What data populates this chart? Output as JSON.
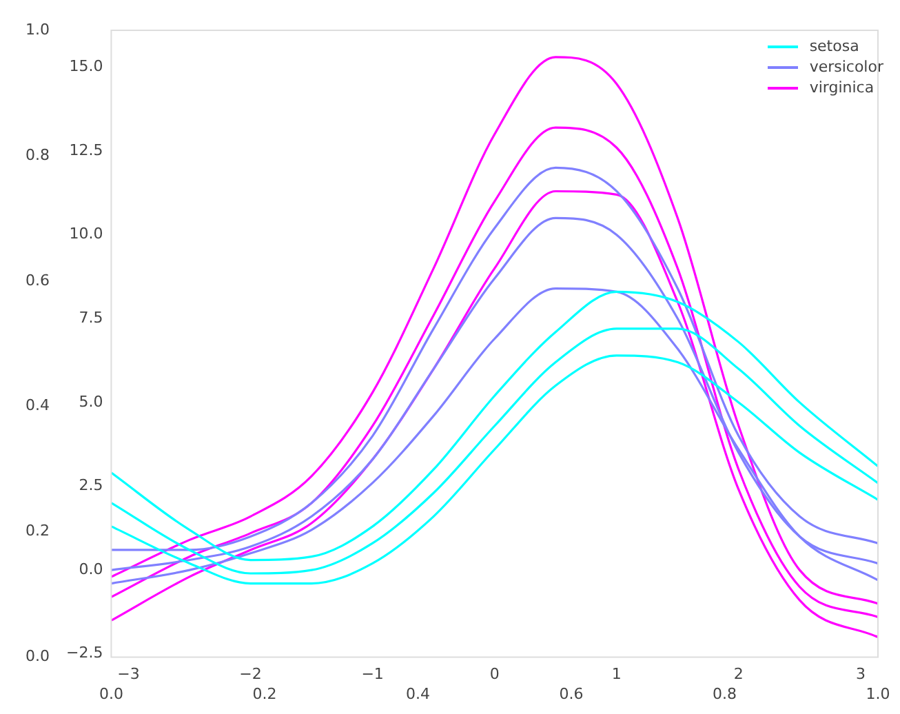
{
  "chart_data": {
    "type": "line",
    "x": [
      -3.14,
      -2.5,
      -2,
      -1.5,
      -1,
      -0.5,
      0,
      0.5,
      1,
      1.5,
      2,
      2.5,
      3.14
    ],
    "series": [
      {
        "name": "setosa",
        "color": "#00ffff",
        "values": [
          2.0,
          0.6,
          -0.1,
          0.0,
          0.8,
          2.3,
          4.3,
          6.2,
          7.2,
          7.2,
          6.0,
          4.3,
          2.6
        ]
      },
      {
        "color": "#00ffff",
        "values": [
          2.9,
          1.2,
          0.3,
          0.4,
          1.3,
          3.0,
          5.2,
          7.1,
          8.3,
          8.0,
          6.8,
          5.0,
          3.1
        ]
      },
      {
        "color": "#00ffff",
        "values": [
          1.3,
          0.2,
          -0.4,
          -0.4,
          0.2,
          1.6,
          3.6,
          5.5,
          6.4,
          6.2,
          5.0,
          3.5,
          2.1
        ]
      },
      {
        "name": "versicolor",
        "color": "#8080ff",
        "values": [
          0.0,
          0.3,
          0.7,
          1.6,
          3.3,
          6.0,
          8.7,
          10.5,
          10.0,
          7.5,
          3.5,
          1.0,
          0.2
        ]
      },
      {
        "color": "#8080ff",
        "values": [
          0.6,
          0.6,
          1.0,
          2.0,
          4.0,
          7.2,
          10.2,
          12.0,
          11.3,
          8.4,
          4.0,
          1.6,
          0.8
        ]
      },
      {
        "color": "#8080ff",
        "values": [
          -0.4,
          0.0,
          0.5,
          1.2,
          2.6,
          4.6,
          6.9,
          8.4,
          8.3,
          6.6,
          3.6,
          1.0,
          -0.3
        ]
      },
      {
        "name": "virginica",
        "color": "#ff00ff",
        "values": [
          -0.8,
          0.4,
          1.1,
          2.0,
          4.3,
          7.6,
          11.0,
          13.2,
          12.6,
          9.0,
          3.0,
          -0.5,
          -1.4
        ]
      },
      {
        "color": "#ff00ff",
        "values": [
          -0.2,
          0.9,
          1.6,
          2.8,
          5.3,
          9.0,
          13.0,
          15.3,
          14.5,
          10.5,
          4.3,
          0.0,
          -1.0
        ]
      },
      {
        "color": "#ff00ff",
        "values": [
          -1.5,
          -0.2,
          0.6,
          1.4,
          3.3,
          6.0,
          9.0,
          11.3,
          11.2,
          8.0,
          2.4,
          -0.9,
          -2.0
        ]
      }
    ],
    "xlim": [
      -3.1416,
      3.1416
    ],
    "xticks": [
      {
        "value": -3,
        "label": "−3"
      },
      {
        "value": -2,
        "label": "−2"
      },
      {
        "value": -1,
        "label": "−1"
      },
      0,
      1,
      2,
      3
    ],
    "ylim": [
      -2.6,
      16.1
    ],
    "yticks": [
      {
        "value": -2.5,
        "label": "−2.5"
      },
      {
        "value": 0,
        "label": "0.0"
      },
      2.5,
      {
        "value": 5,
        "label": "5.0"
      },
      7.5,
      {
        "value": 10,
        "label": "10.0"
      },
      12.5,
      {
        "value": 15,
        "label": "15.0"
      }
    ],
    "x2lim": [
      0,
      1
    ],
    "x2ticks": [
      {
        "value": 0,
        "label": "0.0"
      },
      0.2,
      0.4,
      0.6,
      0.8,
      {
        "value": 1,
        "label": "1.0"
      }
    ],
    "y2lim": [
      0,
      1
    ],
    "y2ticks": [
      {
        "value": 0,
        "label": "0.0"
      },
      0.2,
      0.4,
      0.6,
      0.8,
      {
        "value": 1,
        "label": "1.0"
      }
    ],
    "grid": false,
    "legend": "top right",
    "marker": "none",
    "line_style": "solid"
  }
}
